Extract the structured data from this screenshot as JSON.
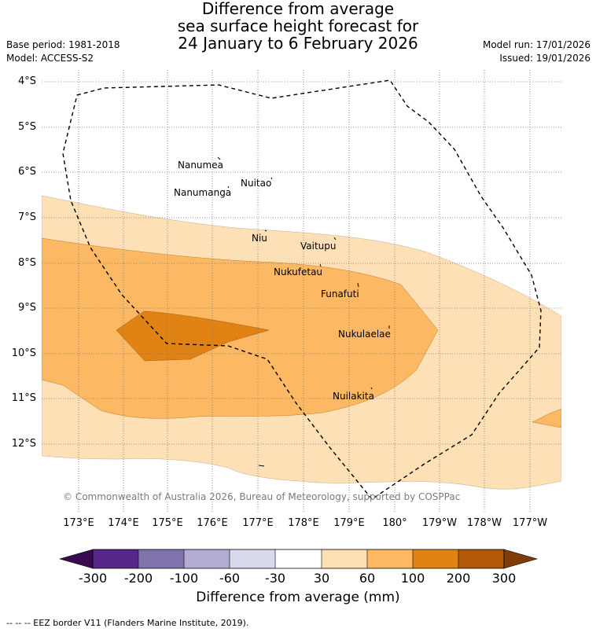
{
  "title": {
    "line1": "Difference from average",
    "line2": "sea surface height forecast for",
    "line3": "24 January to 6 February 2026"
  },
  "meta": {
    "base_period": "Base period: 1981-2018",
    "model": "Model: ACCESS-S2",
    "model_run": "Model run: 17/01/2026",
    "issued": "Issued: 19/01/2026"
  },
  "axes": {
    "lat_labels": [
      "4°S",
      "5°S",
      "6°S",
      "7°S",
      "8°S",
      "9°S",
      "10°S",
      "11°S",
      "12°S"
    ],
    "lon_labels": [
      "173°E",
      "174°E",
      "175°E",
      "176°E",
      "177°E",
      "178°E",
      "179°E",
      "180°",
      "179°W",
      "178°W",
      "177°W"
    ]
  },
  "places": {
    "nanumea": "Nanumea",
    "nuitao": "Nuitao",
    "nanumanga": "Nanumanga",
    "niu": "Niu",
    "vaitupu": "Vaitupu",
    "nukufetau": "Nukufetau",
    "funafuti": "Funafuti",
    "nukulaelae": "Nukulaelae",
    "nuilakita": "Nuilakita"
  },
  "copyright": "© Commonwealth of Australia 2026, Bureau of Meteorology, supported by COSPPac",
  "colorbar": {
    "label": "Difference from average (mm)",
    "ticks": [
      "-300",
      "-200",
      "-100",
      "-60",
      "-30",
      "30",
      "60",
      "100",
      "200",
      "300"
    ],
    "colors": {
      "under": "#3a0a50",
      "c1": "#542788",
      "c2": "#8073ac",
      "c3": "#b2abd2",
      "c4": "#d8daeb",
      "c5": "#ffffff",
      "c6": "#fee0b6",
      "c7": "#fdb863",
      "c8": "#e08214",
      "c9": "#b35806",
      "over": "#7f3b08"
    }
  },
  "footer": "--  --  -- EEZ border V11 (Flanders Marine Institute, 2019)."
}
